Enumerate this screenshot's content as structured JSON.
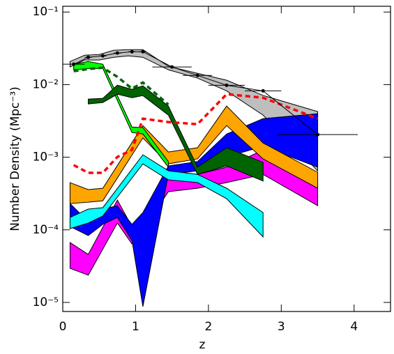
{
  "chart_data": {
    "type": "band",
    "x_label": "z",
    "y_label": "Number Density (Mpc⁻³)",
    "xlim": [
      0,
      4.5
    ],
    "xticks": [
      0,
      1,
      2,
      3,
      4
    ],
    "ylim": [
      7.5e-06,
      0.12
    ],
    "y_log": true,
    "yticks": [
      {
        "value": 1e-05,
        "label": "10⁻⁵"
      },
      {
        "value": 0.0001,
        "label": "10⁻⁴"
      },
      {
        "value": 0.001,
        "label": "10⁻³"
      },
      {
        "value": 0.01,
        "label": "10⁻²"
      },
      {
        "value": 0.1,
        "label": "10⁻¹"
      }
    ],
    "bands": [
      {
        "color": "#bebebe",
        "x": [
          0.1,
          0.3,
          0.5,
          0.7,
          0.9,
          1.1,
          1.45,
          1.85,
          2.25,
          2.75,
          3.5
        ],
        "upper": [
          0.0208,
          0.0254,
          0.026,
          0.0297,
          0.0303,
          0.0303,
          0.0179,
          0.0143,
          0.0115,
          0.0071,
          0.00425
        ],
        "lower": [
          0.0175,
          0.0218,
          0.0218,
          0.0238,
          0.0249,
          0.0238,
          0.016,
          0.0123,
          0.0082,
          0.0038,
          0.00065
        ]
      },
      {
        "color": "#ff00ff",
        "x": [
          0.1,
          0.35,
          0.75,
          0.95,
          1.1,
          1.45,
          1.85,
          2.25,
          2.75,
          3.5
        ],
        "upper": [
          6.68e-05,
          4.59e-05,
          0.000257,
          0.000111,
          0.000155,
          0.00065,
          0.00058,
          0.00073,
          0.00126,
          0.000488
        ],
        "lower": [
          2.95e-05,
          2.37e-05,
          0.000124,
          6.4e-05,
          9.95e-05,
          0.000335,
          0.000374,
          0.000447,
          0.00058,
          0.000215
        ]
      },
      {
        "color": "#0000ff",
        "x": [
          0.1,
          0.35,
          0.55,
          0.75,
          0.95,
          1.1,
          1.45,
          1.85,
          2.25,
          2.75,
          3.5
        ],
        "upper": [
          0.00023,
          0.00013,
          0.000193,
          0.000215,
          0.000119,
          0.000173,
          0.00076,
          0.00087,
          0.00209,
          0.0034,
          0.00397
        ],
        "lower": [
          0.000111,
          8.34e-05,
          0.000119,
          0.000148,
          7.15e-05,
          8.75e-06,
          0.00058,
          0.00065,
          0.00101,
          0.00141,
          0.00073
        ]
      },
      {
        "color": "#00ffff",
        "x": [
          0.1,
          0.35,
          0.55,
          1.1,
          1.45,
          1.85,
          2.25,
          2.75
        ],
        "upper": [
          0.000148,
          0.000193,
          0.000202,
          0.00108,
          0.00065,
          0.00058,
          0.000374,
          0.000173
        ],
        "lower": [
          0.000104,
          0.000124,
          0.000155,
          0.00081,
          0.000488,
          0.000447,
          0.000268,
          7.98e-05
        ]
      },
      {
        "color": "#ffa500",
        "x": [
          0.1,
          0.35,
          0.55,
          1.1,
          1.45,
          1.85,
          2.25,
          2.75,
          3.5
        ],
        "upper": [
          0.000447,
          0.000358,
          0.000374,
          0.00273,
          0.00118,
          0.00135,
          0.00507,
          0.00157,
          0.00062
        ],
        "lower": [
          0.00023,
          0.00024,
          0.000251,
          0.00184,
          0.00081,
          0.00095,
          0.00273,
          0.00095,
          0.000374
        ]
      },
      {
        "color": "#00ff00",
        "x": [
          0.15,
          0.35,
          0.55,
          0.95,
          1.1,
          1.45
        ],
        "upper": [
          0.0191,
          0.0208,
          0.0191,
          0.00261,
          0.00256,
          0.00087
        ],
        "lower": [
          0.016,
          0.0167,
          0.0167,
          0.00219,
          0.00209,
          0.00073
        ]
      },
      {
        "color": "#006400",
        "x": [
          0.35,
          0.55,
          0.75,
          0.95,
          1.1,
          1.45,
          1.85,
          2.25,
          2.75
        ],
        "upper": [
          0.00632,
          0.00647,
          0.00984,
          0.00861,
          0.00962,
          0.00507,
          0.00073,
          0.00135,
          0.00085
        ],
        "lower": [
          0.00542,
          0.00567,
          0.00738,
          0.0066,
          0.00706,
          0.0038,
          0.00058,
          0.00076,
          0.00047
        ]
      }
    ],
    "lines": [
      {
        "color": "#ff0000",
        "dashed": true,
        "x": [
          0.15,
          0.35,
          0.55,
          0.75,
          0.95,
          1.1,
          1.45,
          1.85,
          2.25,
          2.75,
          3.5
        ],
        "values": [
          0.00078,
          0.00061,
          0.00061,
          0.00101,
          0.00126,
          0.0034,
          0.00305,
          0.00285,
          0.00738,
          0.0066,
          0.0034
        ]
      },
      {
        "color": "#006400",
        "dashed": true,
        "x": [
          0.15,
          0.35,
          0.55,
          0.75,
          0.95,
          1.1,
          1.45
        ],
        "values": [
          0.0153,
          0.0164,
          0.0171,
          0.0128,
          0.0088,
          0.0107,
          0.0053
        ]
      }
    ],
    "points": {
      "color": "#000000",
      "x": [
        0.15,
        0.35,
        0.55,
        0.75,
        0.95,
        1.1,
        1.5,
        1.85,
        2.25,
        2.75,
        3.5
      ],
      "values": [
        0.0191,
        0.0238,
        0.0249,
        0.0272,
        0.0284,
        0.0284,
        0.0175,
        0.0134,
        0.0098,
        0.0082,
        0.00205
      ],
      "xerr": [
        0.15,
        0.05,
        0.05,
        0.05,
        0.05,
        0.05,
        0.27,
        0.2,
        0.25,
        0.25,
        0.55
      ]
    }
  }
}
